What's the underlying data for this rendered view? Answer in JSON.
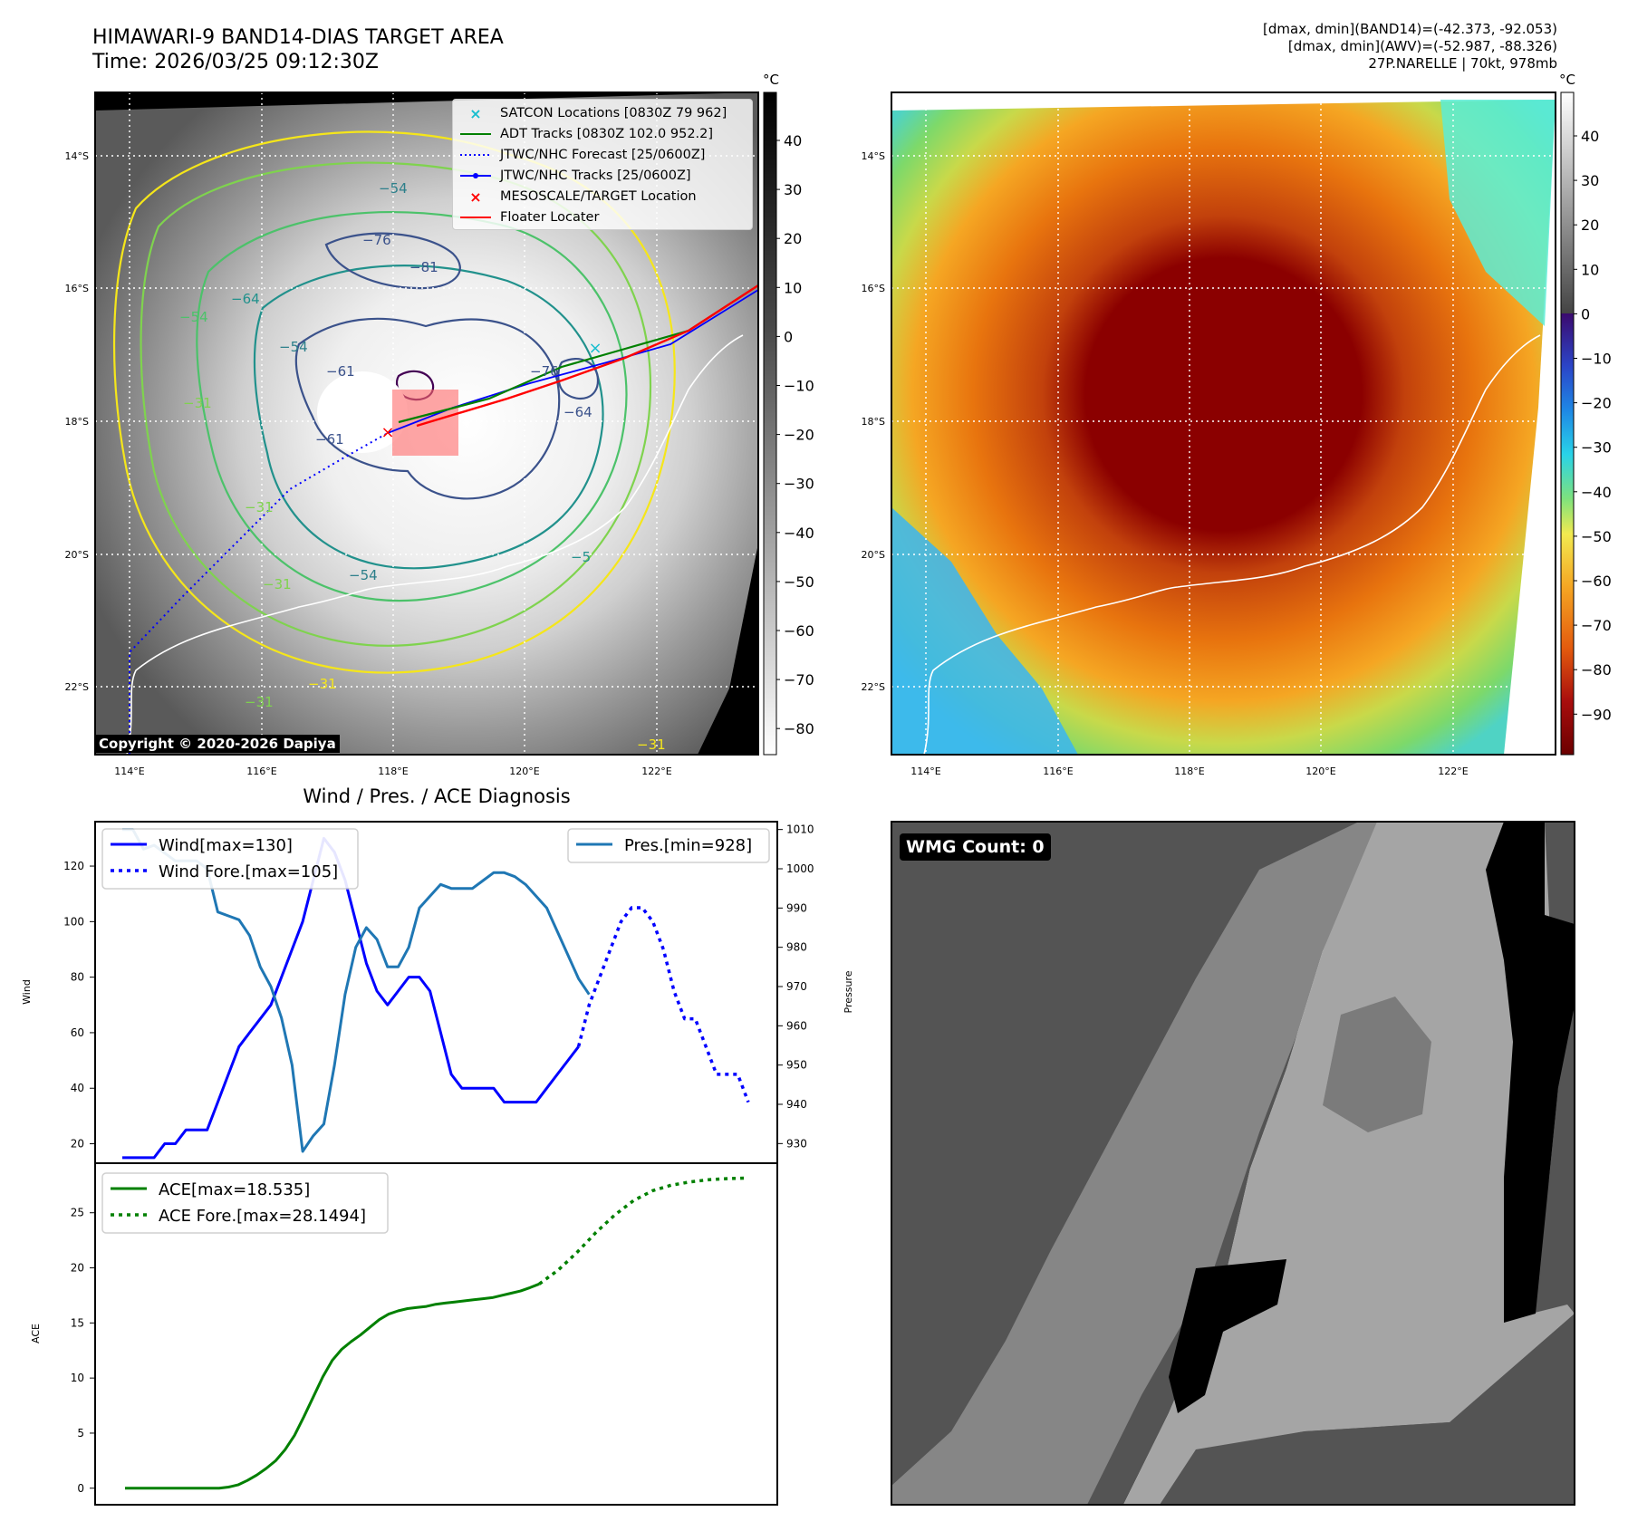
{
  "header": {
    "title_line1": "HIMAWARI-9 BAND14-DIAS TARGET AREA",
    "title_line2": "Time: 2026/03/25 09:12:30Z",
    "info_line1": "[dmax, dmin](BAND14)=(-42.373, -92.053)",
    "info_line2": "[dmax, dmin](AWV)=(-52.987, -88.326)",
    "info_line3": "27P.NARELLE | 70kt, 978mb"
  },
  "map_axes": {
    "lat_labels": [
      "14°S",
      "16°S",
      "18°S",
      "20°S",
      "22°S"
    ],
    "lon_labels": [
      "114°E",
      "116°E",
      "118°E",
      "120°E",
      "122°E"
    ]
  },
  "ir_colorbar": {
    "unit": "°C",
    "ticks": [
      "40",
      "30",
      "20",
      "10",
      "0",
      "−10",
      "−20",
      "−30",
      "−40",
      "−50",
      "−60",
      "−70",
      "−80"
    ]
  },
  "color_colorbar": {
    "unit": "°C",
    "ticks": [
      "40",
      "30",
      "20",
      "10",
      "0",
      "−10",
      "−20",
      "−30",
      "−40",
      "−50",
      "−60",
      "−70",
      "−80",
      "−90"
    ]
  },
  "contour_labels": [
    "−54",
    "−76",
    "−81",
    "−54",
    "−64",
    "−54",
    "−31",
    "−61",
    "−76",
    "−31",
    "−61",
    "−54",
    "−31",
    "−5",
    "−31",
    "−31",
    "−64",
    "−31"
  ],
  "map_legend": [
    {
      "label": "SATCON Locations [0830Z 79 962]",
      "color": "#17becf",
      "style": "x"
    },
    {
      "label": "ADT Tracks [0830Z 102.0 952.2]",
      "color": "#008000",
      "style": "line"
    },
    {
      "label": "JTWC/NHC Forecast [25/0600Z]",
      "color": "#0000ff",
      "style": "dotted"
    },
    {
      "label": "JTWC/NHC Tracks [25/0600Z]",
      "color": "#0000ff",
      "style": "line-dot"
    },
    {
      "label": "MESOSCALE/TARGET Location",
      "color": "#ff0000",
      "style": "x"
    },
    {
      "label": "Floater Locater",
      "color": "#ff0000",
      "style": "line"
    }
  ],
  "copyright": "Copyright © 2020-2026 Dapiya",
  "wmg_label": "WMG Count: 0",
  "chart_data": [
    {
      "type": "line",
      "title": "Wind / Pres. / ACE Diagnosis",
      "xlabel": "",
      "ylabel": "Wind",
      "ylabel_right": "Pressure",
      "ylim": [
        13,
        136
      ],
      "ylim_right": [
        925,
        1012
      ],
      "yticks": [
        20,
        40,
        60,
        80,
        100,
        120
      ],
      "yticks_right": [
        930,
        940,
        950,
        960,
        970,
        980,
        990,
        1000,
        1010
      ],
      "x": [
        0,
        1,
        2,
        3,
        4,
        5,
        6,
        7,
        8,
        9,
        10,
        11,
        12,
        13,
        14,
        15,
        16,
        17,
        18,
        19,
        20,
        21,
        22,
        23,
        24,
        25,
        26,
        27,
        28,
        29,
        30,
        31,
        32,
        33,
        34,
        35,
        36,
        37,
        38,
        39,
        40,
        41,
        42,
        43,
        44,
        45,
        46,
        47,
        48,
        49,
        50,
        51,
        52,
        53,
        54,
        55,
        56,
        57,
        58,
        59
      ],
      "series": [
        {
          "name": "Wind[max=130]",
          "color": "#0000ff",
          "style": "solid",
          "axis": "left",
          "x": [
            0,
            1,
            2,
            3,
            4,
            5,
            6,
            7,
            8,
            9,
            10,
            11,
            12,
            13,
            14,
            15,
            16,
            17,
            18,
            19,
            20,
            21,
            22,
            23,
            24,
            25,
            26,
            27,
            28,
            29,
            30,
            31,
            32,
            33,
            34,
            35,
            36,
            37,
            38,
            39,
            40,
            41,
            42,
            43
          ],
          "values": [
            15,
            15,
            15,
            15,
            20,
            20,
            25,
            25,
            25,
            35,
            45,
            55,
            60,
            65,
            70,
            80,
            90,
            100,
            115,
            130,
            125,
            115,
            100,
            85,
            75,
            70,
            75,
            80,
            80,
            75,
            60,
            45,
            40,
            40,
            40,
            40,
            35,
            35,
            35,
            35,
            40,
            45,
            50,
            55
          ]
        },
        {
          "name": "Wind Fore.[max=105]",
          "color": "#0000ff",
          "style": "dotted",
          "axis": "left",
          "x": [
            43,
            44,
            45,
            46,
            47,
            48,
            49,
            50,
            51,
            52,
            53,
            54,
            55,
            56,
            57,
            58,
            59
          ],
          "values": [
            55,
            70,
            80,
            90,
            100,
            105,
            105,
            100,
            90,
            75,
            65,
            65,
            55,
            45,
            45,
            45,
            35
          ]
        },
        {
          "name": "Pres.[min=928]",
          "color": "#1f77b4",
          "style": "solid",
          "axis": "right",
          "x": [
            0,
            1,
            2,
            3,
            4,
            5,
            6,
            7,
            8,
            9,
            10,
            11,
            12,
            13,
            14,
            15,
            16,
            17,
            18,
            19,
            20,
            21,
            22,
            23,
            24,
            25,
            26,
            27,
            28,
            29,
            30,
            31,
            32,
            33,
            34,
            35,
            36,
            37,
            38,
            39,
            40,
            41,
            42,
            43,
            44
          ],
          "values": [
            1010,
            1010,
            1005,
            1006,
            1004,
            1002,
            1002,
            1002,
            1000,
            989,
            988,
            987,
            983,
            975,
            970,
            962,
            950,
            928,
            932,
            935,
            950,
            968,
            980,
            985,
            982,
            975,
            975,
            980,
            990,
            993,
            996,
            995,
            995,
            995,
            997,
            999,
            999,
            998,
            996,
            993,
            990,
            984,
            978,
            972,
            968
          ]
        }
      ]
    },
    {
      "type": "line",
      "xlabel": "",
      "ylabel": "ACE",
      "ylim": [
        -1.5,
        29.5
      ],
      "yticks": [
        0,
        5,
        10,
        15,
        20,
        25
      ],
      "series": [
        {
          "name": "ACE[max=18.535]",
          "color": "#008000",
          "style": "solid",
          "x": [
            0,
            2,
            4,
            6,
            8,
            10,
            12,
            14,
            16,
            18,
            20,
            22,
            24,
            26,
            28,
            30,
            32,
            34,
            36,
            38,
            40,
            42,
            44,
            46,
            48,
            50,
            52,
            54,
            56,
            58,
            60,
            62,
            64,
            66,
            68,
            70,
            72,
            74,
            76,
            78,
            80,
            82,
            84,
            86,
            88
          ],
          "values": [
            0,
            0,
            0,
            0,
            0,
            0,
            0,
            0,
            0,
            0,
            0,
            0.1,
            0.3,
            0.7,
            1.2,
            1.8,
            2.5,
            3.5,
            4.8,
            6.5,
            8.3,
            10.1,
            11.6,
            12.6,
            13.3,
            13.9,
            14.6,
            15.3,
            15.8,
            16.1,
            16.3,
            16.4,
            16.5,
            16.7,
            16.8,
            16.9,
            17.0,
            17.1,
            17.2,
            17.3,
            17.5,
            17.7,
            17.9,
            18.2,
            18.535
          ]
        },
        {
          "name": "ACE Fore.[max=28.1494]",
          "color": "#008000",
          "style": "dotted",
          "x": [
            88,
            92,
            96,
            100,
            104,
            108,
            112,
            116,
            120,
            124,
            128,
            132
          ],
          "values": [
            18.535,
            19.8,
            21.4,
            23.2,
            24.8,
            26.1,
            27.0,
            27.5,
            27.8,
            28.0,
            28.1,
            28.1494
          ]
        }
      ]
    }
  ]
}
